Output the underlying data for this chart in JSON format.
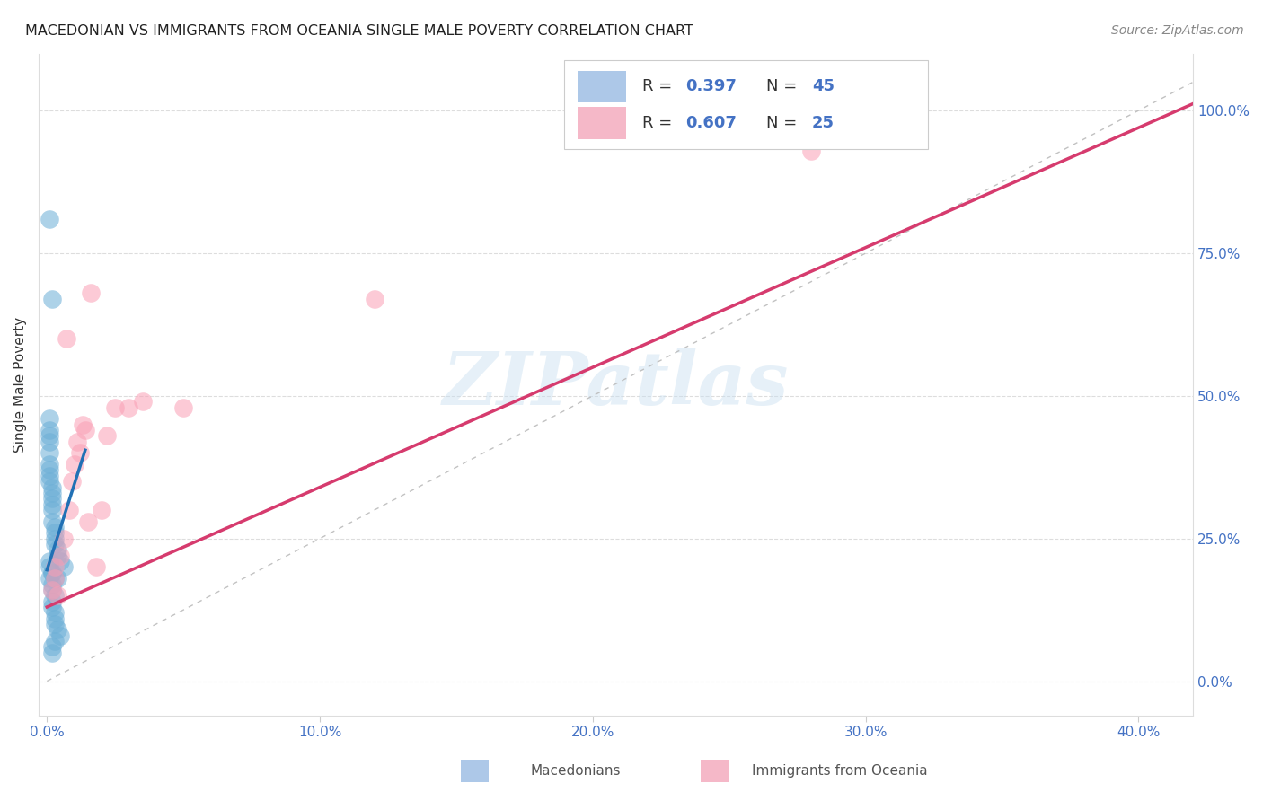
{
  "title": "MACEDONIAN VS IMMIGRANTS FROM OCEANIA SINGLE MALE POVERTY CORRELATION CHART",
  "source": "Source: ZipAtlas.com",
  "ylabel": "Single Male Poverty",
  "x_min": -0.003,
  "x_max": 0.42,
  "y_min": -0.06,
  "y_max": 1.1,
  "x_ticks": [
    0.0,
    0.1,
    0.2,
    0.3,
    0.4
  ],
  "x_tick_labels": [
    "0.0%",
    "10.0%",
    "20.0%",
    "30.0%",
    "40.0%"
  ],
  "y_ticks": [
    0.0,
    0.25,
    0.5,
    0.75,
    1.0
  ],
  "y_tick_labels": [
    "0.0%",
    "25.0%",
    "50.0%",
    "75.0%",
    "100.0%"
  ],
  "macedonians_color": "#6baed6",
  "oceania_color": "#fa9fb5",
  "trendline_mac_color": "#2171b5",
  "trendline_oce_color": "#d63b6e",
  "diagonal_color": "#bbbbbb",
  "R_mac": 0.397,
  "N_mac": 45,
  "R_oce": 0.607,
  "N_oce": 25,
  "watermark": "ZIPatlas",
  "mac_x": [
    0.001,
    0.001,
    0.001,
    0.001,
    0.001,
    0.001,
    0.001,
    0.001,
    0.002,
    0.002,
    0.002,
    0.002,
    0.002,
    0.002,
    0.002,
    0.003,
    0.003,
    0.003,
    0.003,
    0.004,
    0.004,
    0.005,
    0.006,
    0.001,
    0.001,
    0.002,
    0.002,
    0.003,
    0.003,
    0.001,
    0.002,
    0.002,
    0.002,
    0.003,
    0.003,
    0.004,
    0.001,
    0.001,
    0.002,
    0.002,
    0.003,
    0.002,
    0.003,
    0.004,
    0.005
  ],
  "mac_y": [
    0.81,
    0.43,
    0.42,
    0.4,
    0.38,
    0.37,
    0.36,
    0.35,
    0.67,
    0.34,
    0.33,
    0.32,
    0.31,
    0.3,
    0.28,
    0.27,
    0.26,
    0.25,
    0.24,
    0.23,
    0.22,
    0.21,
    0.2,
    0.44,
    0.46,
    0.19,
    0.19,
    0.18,
    0.15,
    0.18,
    0.17,
    0.16,
    0.13,
    0.12,
    0.11,
    0.18,
    0.2,
    0.21,
    0.05,
    0.06,
    0.07,
    0.14,
    0.1,
    0.09,
    0.08
  ],
  "oce_x": [
    0.002,
    0.003,
    0.003,
    0.004,
    0.005,
    0.006,
    0.007,
    0.008,
    0.009,
    0.01,
    0.011,
    0.012,
    0.013,
    0.014,
    0.015,
    0.016,
    0.018,
    0.02,
    0.022,
    0.025,
    0.03,
    0.035,
    0.05,
    0.12,
    0.28
  ],
  "oce_y": [
    0.16,
    0.2,
    0.18,
    0.15,
    0.22,
    0.25,
    0.6,
    0.3,
    0.35,
    0.38,
    0.42,
    0.4,
    0.45,
    0.44,
    0.28,
    0.68,
    0.2,
    0.3,
    0.43,
    0.48,
    0.48,
    0.49,
    0.48,
    0.67,
    0.93
  ],
  "mac_trend_x": [
    0.0,
    0.014
  ],
  "mac_trend_y_intercept": 0.195,
  "mac_trend_slope": 15.0,
  "oce_trend_x": [
    0.0,
    0.42
  ],
  "oce_trend_y_intercept": 0.13,
  "oce_trend_slope": 2.1
}
